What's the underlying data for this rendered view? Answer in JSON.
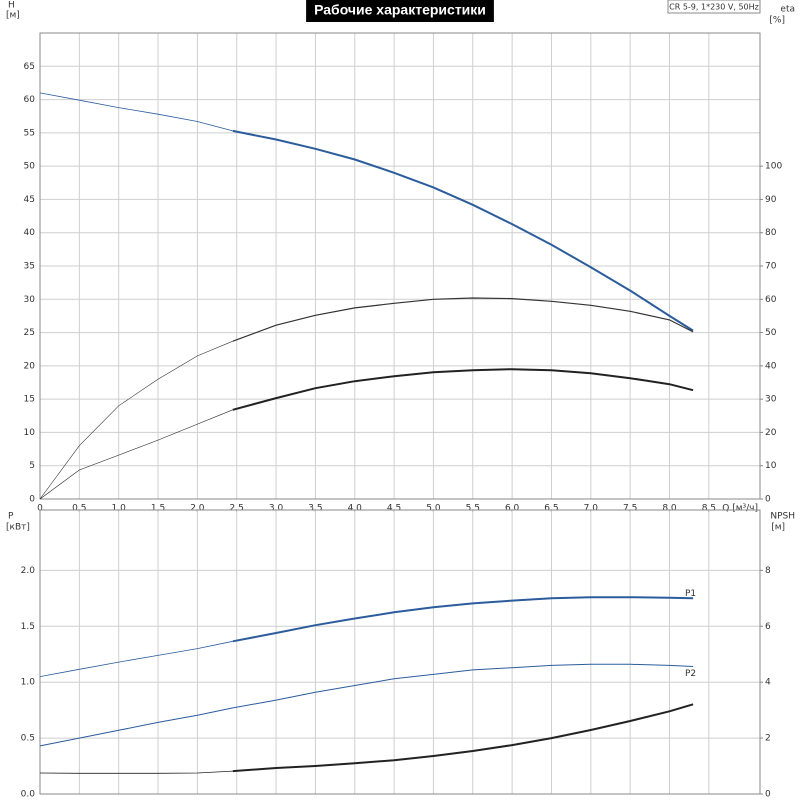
{
  "header": {
    "title": "Рабочие характеристики",
    "annotation": "CR 5-9, 1*230 V, 50Hz"
  },
  "chart_data": [
    {
      "type": "line",
      "ylabel": "H",
      "yunit": "[м]",
      "y2label": "eta",
      "y2unit": "[%]",
      "xlabel": "Q [м³/ч]",
      "x": [
        0,
        0.5,
        1,
        1.5,
        2,
        2.45,
        3,
        3.5,
        4,
        4.5,
        5,
        5.5,
        6,
        6.5,
        7,
        7.5,
        8,
        8.3
      ],
      "xlim": [
        0,
        9.15
      ],
      "xticks": [
        0,
        {
          "value": 0.5,
          "label": "0,5"
        },
        {
          "value": 1,
          "label": "1,0"
        },
        {
          "value": 1.5,
          "label": "1,5"
        },
        {
          "value": 2,
          "label": "2,0"
        },
        {
          "value": 2.5,
          "label": "2,5"
        },
        {
          "value": 3,
          "label": "3,0"
        },
        {
          "value": 3.5,
          "label": "3,5"
        },
        {
          "value": 4,
          "label": "4,0"
        },
        {
          "value": 4.5,
          "label": "4,5"
        },
        {
          "value": 5,
          "label": "5,0"
        },
        {
          "value": 5.5,
          "label": "5,5"
        },
        {
          "value": 6,
          "label": "6,0"
        },
        {
          "value": 6.5,
          "label": "6,5"
        },
        {
          "value": 7,
          "label": "7,0"
        },
        {
          "value": 7.5,
          "label": "7,5"
        },
        {
          "value": 8,
          "label": "8,0"
        },
        {
          "value": 8.5,
          "label": "8,5"
        }
      ],
      "ylim": [
        0,
        70
      ],
      "yticks": [
        0,
        5,
        10,
        15,
        20,
        25,
        30,
        35,
        40,
        45,
        50,
        55,
        60,
        65
      ],
      "y2lim": [
        0,
        140
      ],
      "y2ticks": [
        0,
        10,
        20,
        30,
        40,
        50,
        60,
        70,
        80,
        90,
        100
      ],
      "grid": true,
      "series": [
        {
          "color": "#2b5c9c",
          "width": 0.8,
          "values": [
            61,
            59.9,
            58.8,
            57.8,
            56.7,
            55.3,
            null,
            null,
            null,
            null,
            null,
            null,
            null,
            null,
            null,
            null,
            null,
            null
          ]
        },
        {
          "color": "#2b5c9c",
          "width": 2,
          "values": [
            null,
            null,
            null,
            null,
            null,
            55.3,
            54,
            52.6,
            51,
            49,
            46.8,
            44.2,
            41.3,
            38.2,
            34.8,
            31.3,
            27.5,
            25.3
          ]
        },
        {
          "color": "#333333",
          "width": 0.6,
          "axis": "y2",
          "values": [
            0,
            16,
            28,
            36,
            43,
            47.4,
            null,
            null,
            null,
            null,
            null,
            null,
            null,
            null,
            null,
            null,
            null,
            null
          ]
        },
        {
          "color": "#333333",
          "width": 1.2,
          "axis": "y2",
          "values": [
            null,
            null,
            null,
            null,
            null,
            47.4,
            52.2,
            55.2,
            57.4,
            58.8,
            60,
            60.4,
            60.2,
            59.4,
            58.2,
            56.4,
            53.8,
            50.2
          ]
        },
        {
          "color": "#222222",
          "width": 0.6,
          "axis": "y2",
          "values": [
            0,
            8.7,
            13.2,
            17.7,
            22.5,
            26.8,
            null,
            null,
            null,
            null,
            null,
            null,
            null,
            null,
            null,
            null,
            null,
            null
          ]
        },
        {
          "color": "#222222",
          "width": 2,
          "axis": "y2",
          "values": [
            null,
            null,
            null,
            null,
            null,
            26.8,
            30.3,
            33.3,
            35.4,
            36.9,
            38.1,
            38.7,
            39,
            38.7,
            37.8,
            36.3,
            34.5,
            32.7
          ]
        }
      ]
    },
    {
      "type": "line",
      "ylabel": "P",
      "yunit": "[кВт]",
      "y2label": "NPSH",
      "y2unit": "[м]",
      "x": [
        0,
        0.5,
        1,
        1.5,
        2,
        2.45,
        3,
        3.5,
        4,
        4.5,
        5,
        5.5,
        6,
        6.5,
        7,
        7.5,
        8,
        8.3
      ],
      "xlim": [
        0,
        9.15
      ],
      "ylim": [
        0,
        2.54
      ],
      "yticks": [
        {
          "value": 0,
          "label": "0.0"
        },
        0.5,
        {
          "value": 1,
          "label": "1.0"
        },
        1.5,
        {
          "value": 2,
          "label": "2.0"
        }
      ],
      "y2lim": [
        0,
        10.16
      ],
      "y2ticks": [
        0,
        2,
        4,
        6,
        8
      ],
      "grid": true,
      "series": [
        {
          "color": "#2b5c9c",
          "width": 0.8,
          "values": [
            1.05,
            1.115,
            1.18,
            1.24,
            1.3,
            1.366,
            null,
            null,
            null,
            null,
            null,
            null,
            null,
            null,
            null,
            null,
            null,
            null
          ]
        },
        {
          "name": "P1",
          "color": "#2b5c9c",
          "width": 2,
          "values": [
            null,
            null,
            null,
            null,
            null,
            1.366,
            1.44,
            1.51,
            1.57,
            1.625,
            1.67,
            1.705,
            1.73,
            1.75,
            1.76,
            1.76,
            1.755,
            1.75
          ]
        },
        {
          "name": "P2",
          "color": "#2b5c9c",
          "width": 1,
          "values": [
            0.43,
            0.5,
            0.57,
            0.64,
            0.705,
            0.77,
            0.84,
            0.91,
            0.97,
            1.03,
            1.07,
            1.11,
            1.13,
            1.15,
            1.16,
            1.16,
            1.15,
            1.14
          ]
        },
        {
          "color": "#222222",
          "width": 0.8,
          "axis": "y2",
          "values": [
            0.75,
            0.74,
            0.74,
            0.74,
            0.75,
            0.82,
            null,
            null,
            null,
            null,
            null,
            null,
            null,
            null,
            null,
            null,
            null,
            null
          ]
        },
        {
          "color": "#222222",
          "width": 2,
          "axis": "y2",
          "values": [
            null,
            null,
            null,
            null,
            null,
            0.82,
            0.93,
            1.0,
            1.1,
            1.21,
            1.36,
            1.54,
            1.75,
            2.0,
            2.29,
            2.61,
            2.96,
            3.21
          ]
        }
      ]
    }
  ]
}
